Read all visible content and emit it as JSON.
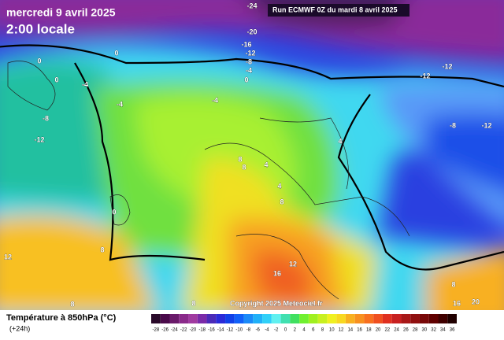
{
  "header": {
    "title": "mercredi 9 avril 2025",
    "time": "2:00 locale",
    "run": "Run ECMWF 0Z du mardi 8 avril 2025"
  },
  "copyright": "Copyright 2025 Meteociel.fr",
  "legend": {
    "title": "Température à 850hPa (°C)",
    "subtitle": "(+24h)",
    "values": [
      -28,
      -26,
      -24,
      -22,
      -20,
      -18,
      -16,
      -14,
      -12,
      -10,
      -8,
      -6,
      -4,
      -2,
      0,
      2,
      4,
      6,
      8,
      10,
      12,
      14,
      16,
      18,
      20,
      22,
      24,
      26,
      28,
      30,
      32,
      34,
      36
    ],
    "colors": [
      "#2a0a2a",
      "#4a0a4a",
      "#6a1a6a",
      "#8a2a8a",
      "#a03aa0",
      "#7a2aa8",
      "#4a2ab8",
      "#2a2ad8",
      "#1040e8",
      "#1060f8",
      "#1a8af8",
      "#20b0f8",
      "#30d0f8",
      "#60f0f0",
      "#40e0b0",
      "#40e060",
      "#70f030",
      "#a0f020",
      "#c8f020",
      "#f0f020",
      "#f8d820",
      "#f8b020",
      "#f89020",
      "#f87020",
      "#f05020",
      "#e03020",
      "#c82020",
      "#a81818",
      "#901010",
      "#780808",
      "#600000",
      "#400000",
      "#200000"
    ]
  },
  "map_labels": [
    -24,
    -20,
    -16,
    -12,
    -8,
    -4,
    0,
    -12,
    -12,
    -8,
    -12,
    -8,
    -12,
    0,
    0,
    -4,
    0,
    -4,
    -4,
    0,
    8,
    8,
    4,
    4,
    8,
    4,
    12,
    8,
    12,
    16,
    8,
    8,
    16,
    20,
    8
  ]
}
